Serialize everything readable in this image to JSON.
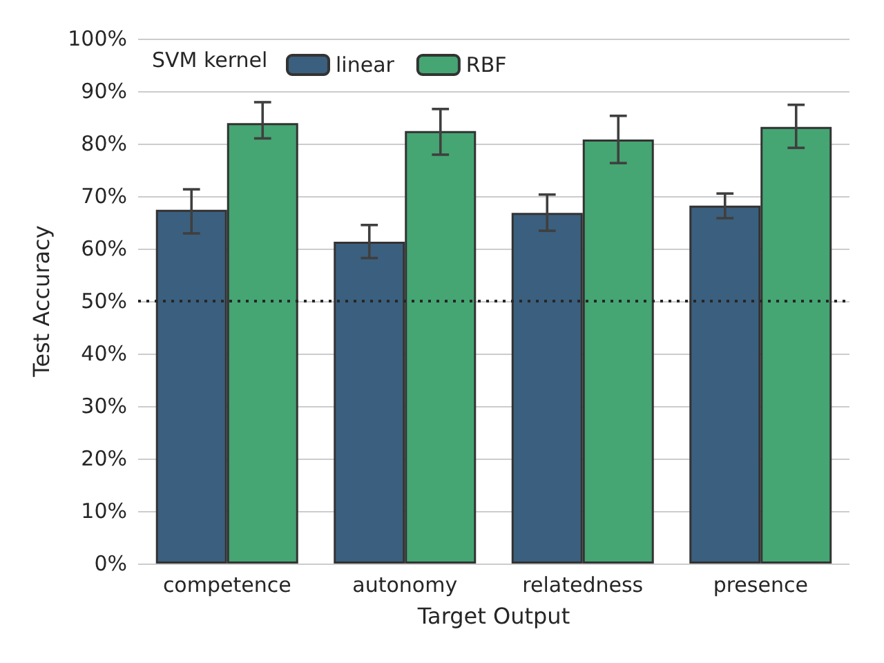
{
  "chart_data": {
    "type": "bar",
    "xlabel": "Target Output",
    "ylabel": "Test Accuracy",
    "legend_title": "SVM kernel",
    "categories": [
      "competence",
      "autonomy",
      "relatedness",
      "presence"
    ],
    "series": [
      {
        "name": "linear",
        "color": "#3b5f7e",
        "values": [
          67.4,
          61.3,
          66.8,
          68.2
        ],
        "errors": [
          [
            62.9,
            71.3
          ],
          [
            58.2,
            64.5
          ],
          [
            63.4,
            70.3
          ],
          [
            65.8,
            70.5
          ]
        ]
      },
      {
        "name": "RBF",
        "color": "#45a673",
        "values": [
          83.9,
          82.4,
          80.8,
          83.2
        ],
        "errors": [
          [
            81.0,
            87.9
          ],
          [
            77.9,
            86.6
          ],
          [
            76.3,
            85.3
          ],
          [
            79.2,
            87.4
          ]
        ]
      }
    ],
    "ylim": [
      0,
      100
    ],
    "yticks": [
      {
        "value": 0,
        "label": "0%"
      },
      {
        "value": 10,
        "label": "10%"
      },
      {
        "value": 20,
        "label": "20%"
      },
      {
        "value": 30,
        "label": "30%"
      },
      {
        "value": 40,
        "label": "40%"
      },
      {
        "value": 50,
        "label": "50%"
      },
      {
        "value": 60,
        "label": "60%"
      },
      {
        "value": 70,
        "label": "70%"
      },
      {
        "value": 80,
        "label": "80%"
      },
      {
        "value": 90,
        "label": "90%"
      },
      {
        "value": 100,
        "label": "100%"
      }
    ],
    "ref_lines": [
      {
        "axis": "y",
        "value": 50,
        "color": "#262626",
        "line_style": "dotted"
      }
    ],
    "grid": "y",
    "legend": "top left"
  }
}
